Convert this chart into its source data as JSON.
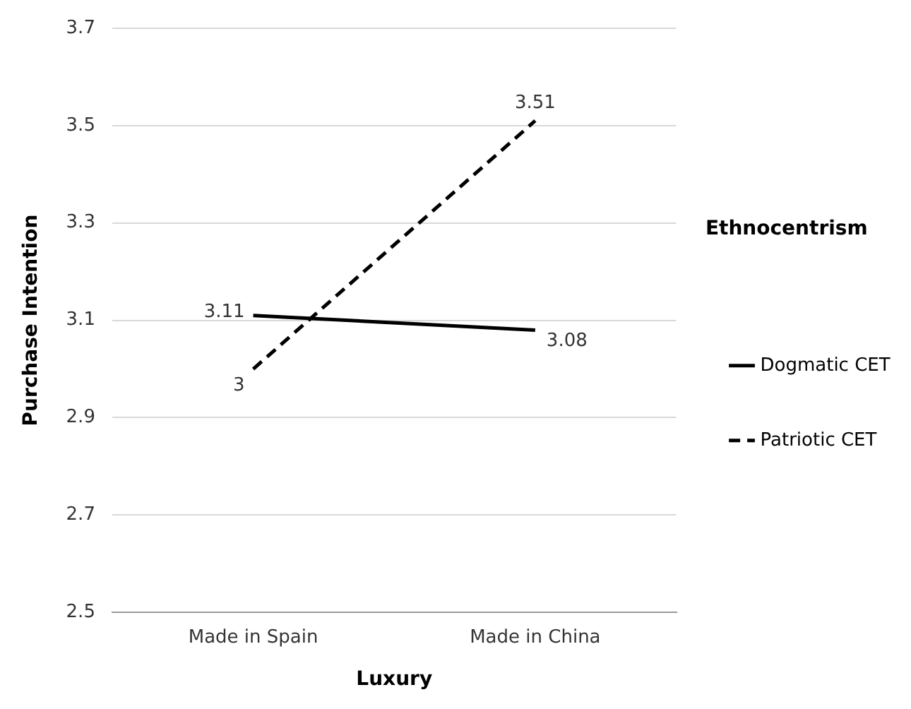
{
  "chart_data": {
    "type": "line",
    "xlabel": "Luxury",
    "ylabel": "Purchase Intention",
    "legend_title": "Ethnocentrism",
    "categories": [
      "Made in Spain",
      "Made in China"
    ],
    "series": [
      {
        "name": "Dogmatic CET",
        "color": "#000000",
        "values": [
          3.11,
          3.08
        ],
        "line_style": "solid"
      },
      {
        "name": "Patriotic CET",
        "color": "#000000",
        "values": [
          3,
          3.51
        ],
        "line_style": "dashed"
      }
    ],
    "ylim": [
      2.5,
      3.7
    ],
    "yticks": [
      2.5,
      2.7,
      2.9,
      3.1,
      3.3,
      3.5,
      3.7
    ],
    "grid": "y",
    "legend": "right",
    "marker": "none",
    "data_labels": true
  }
}
